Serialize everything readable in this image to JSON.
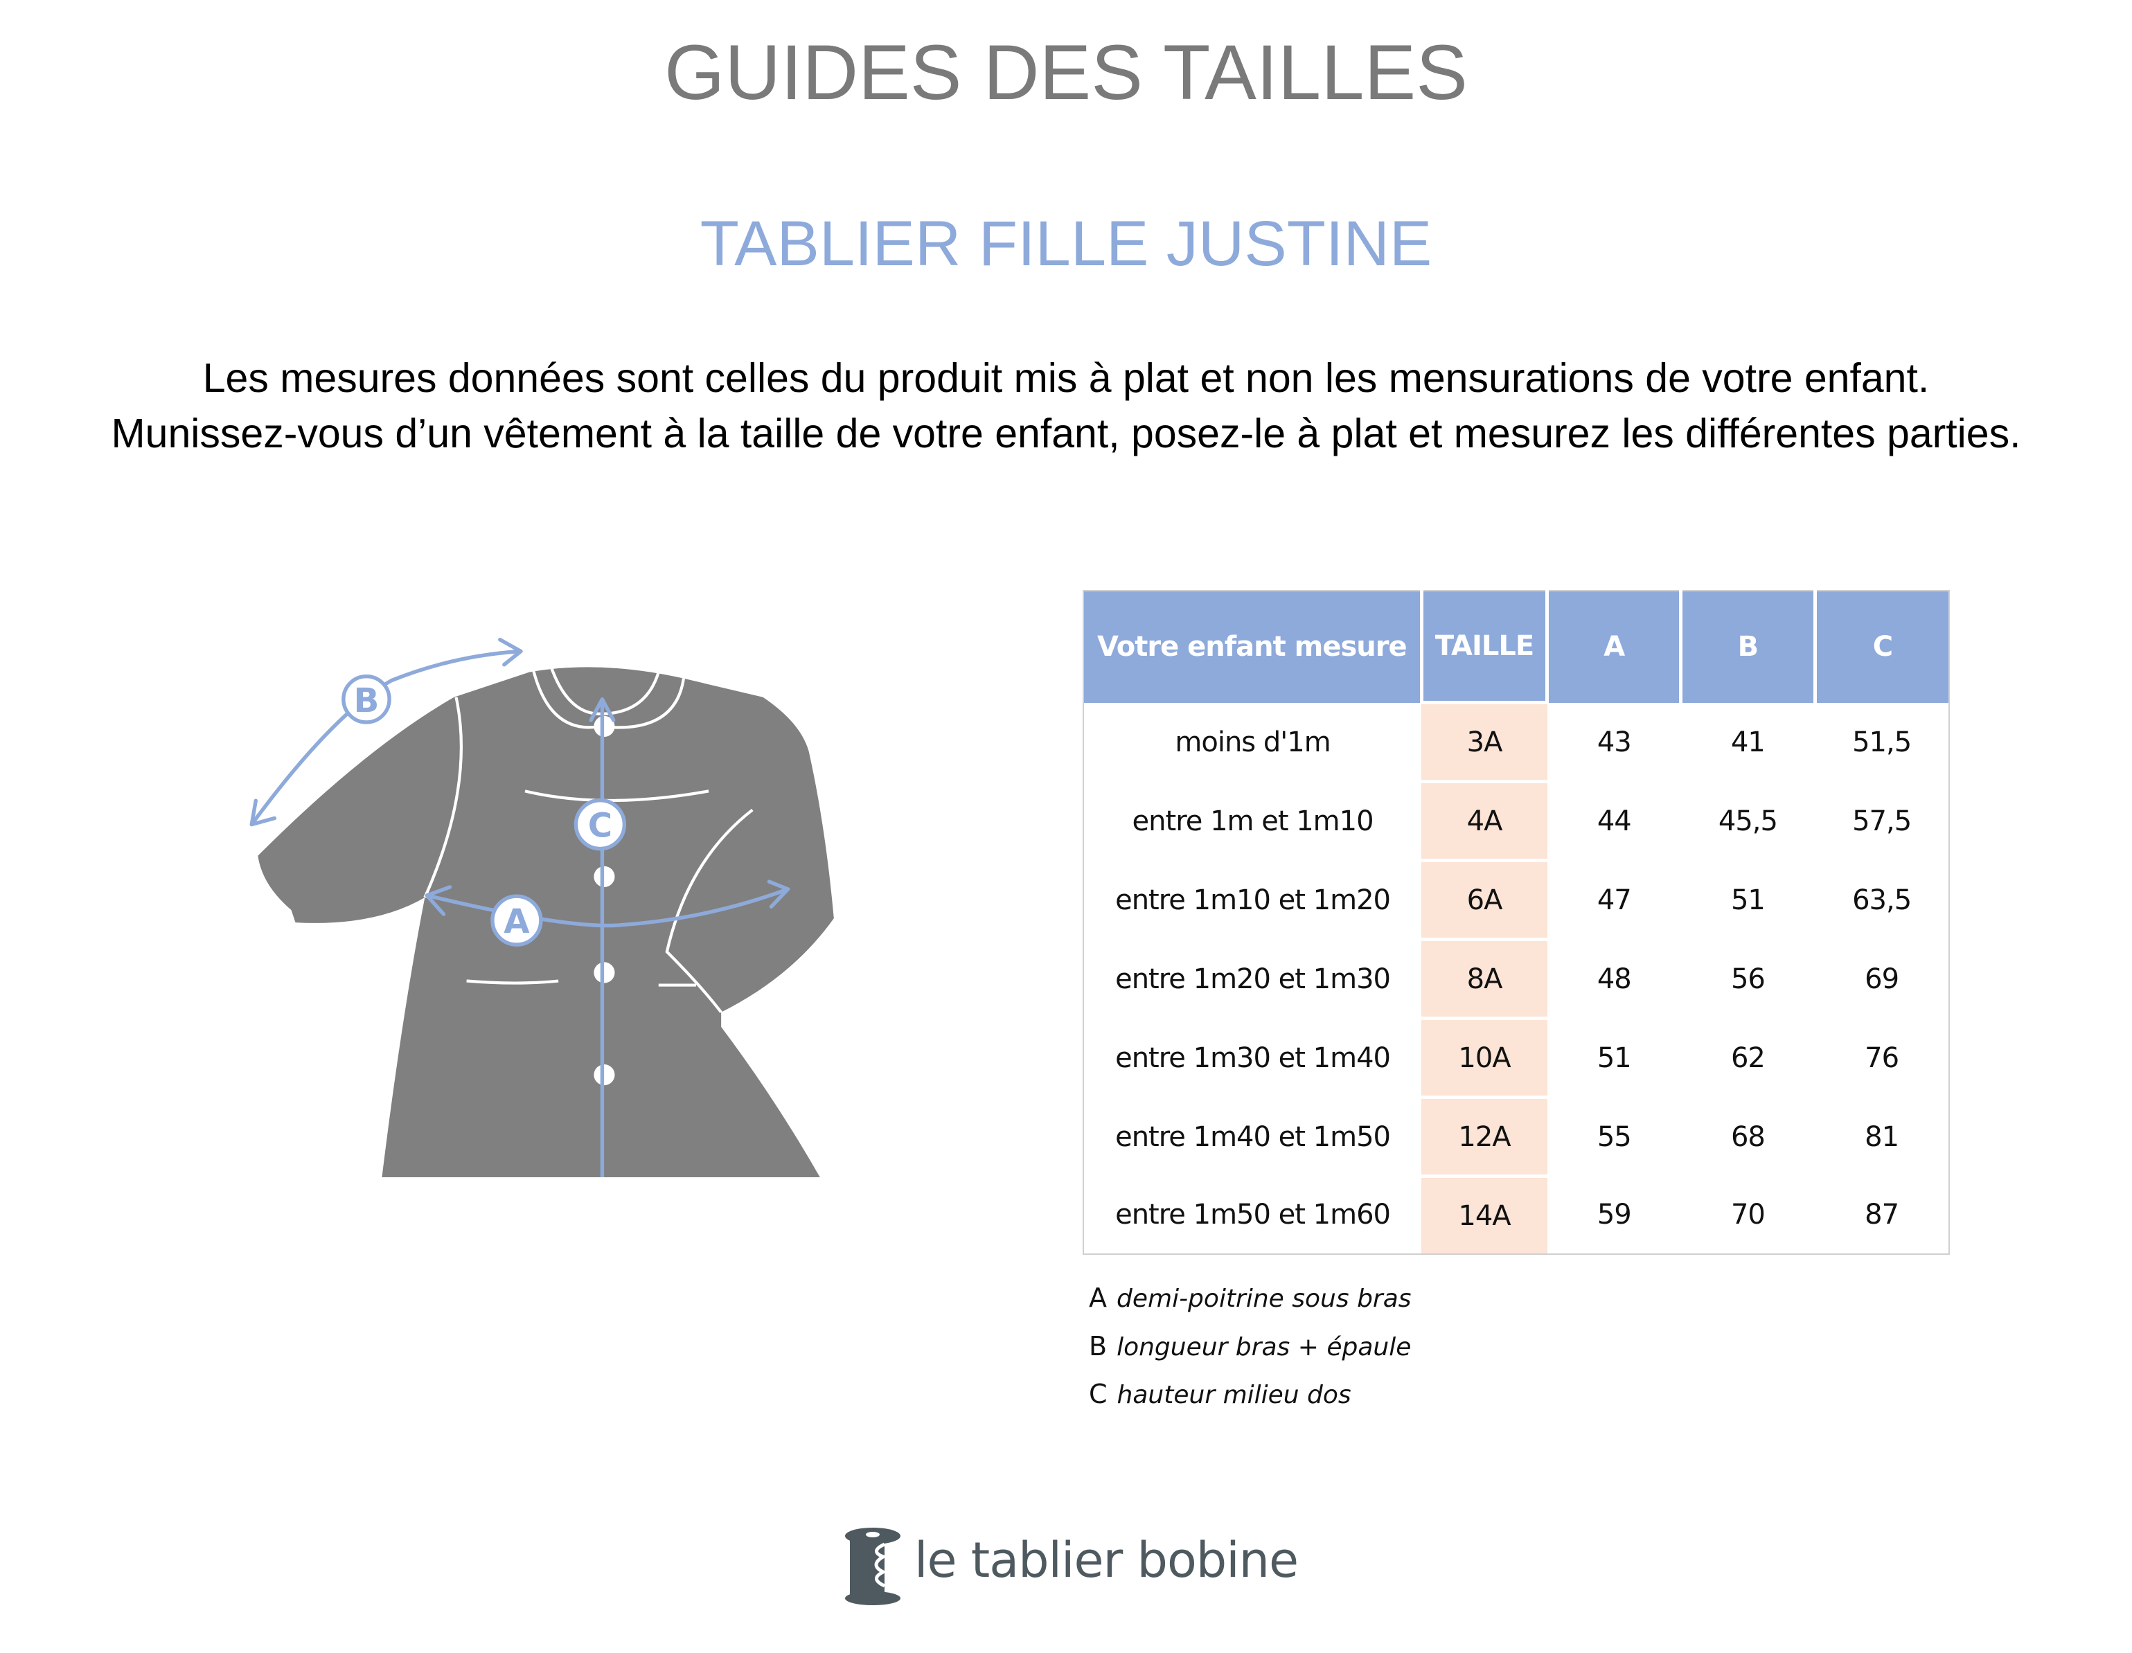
{
  "header": {
    "title": "GUIDES DES TAILLES",
    "subtitle": "TABLIER FILLE JUSTINE",
    "intro_line1": "Les mesures données sont celles du produit mis à plat et non les mensurations de votre enfant.",
    "intro_line2": "Munissez-vous d’un vêtement à la taille de votre enfant, posez-le à plat et mesurez les différentes parties."
  },
  "diagram": {
    "labels": {
      "a": "A",
      "b": "B",
      "c": "C"
    },
    "arrow_color": "#8eaadb",
    "garment_color": "#808080"
  },
  "table": {
    "headers": [
      "Votre enfant mesure",
      "TAILLE",
      "A",
      "B",
      "C"
    ],
    "rows": [
      [
        "moins d'1m",
        "3A",
        "43",
        "41",
        "51,5"
      ],
      [
        "entre 1m et 1m10",
        "4A",
        "44",
        "45,5",
        "57,5"
      ],
      [
        "entre 1m10 et 1m20",
        "6A",
        "47",
        "51",
        "63,5"
      ],
      [
        "entre 1m20 et 1m30",
        "8A",
        "48",
        "56",
        "69"
      ],
      [
        "entre 1m30 et 1m40",
        "10A",
        "51",
        "62",
        "76"
      ],
      [
        "entre 1m40 et 1m50",
        "12A",
        "55",
        "68",
        "81"
      ],
      [
        "entre 1m50 et 1m60",
        "14A",
        "59",
        "70",
        "87"
      ]
    ],
    "header_color": "#8eaadb",
    "size_column_color": "#fce4d6"
  },
  "legend": [
    {
      "key": "A",
      "text": "demi-poitrine sous bras"
    },
    {
      "key": "B",
      "text": "longueur bras + épaule"
    },
    {
      "key": "C",
      "text": "hauteur milieu dos"
    }
  ],
  "footer": {
    "logo_text": "le tablier bobine",
    "logo_icon": "spool-icon"
  }
}
